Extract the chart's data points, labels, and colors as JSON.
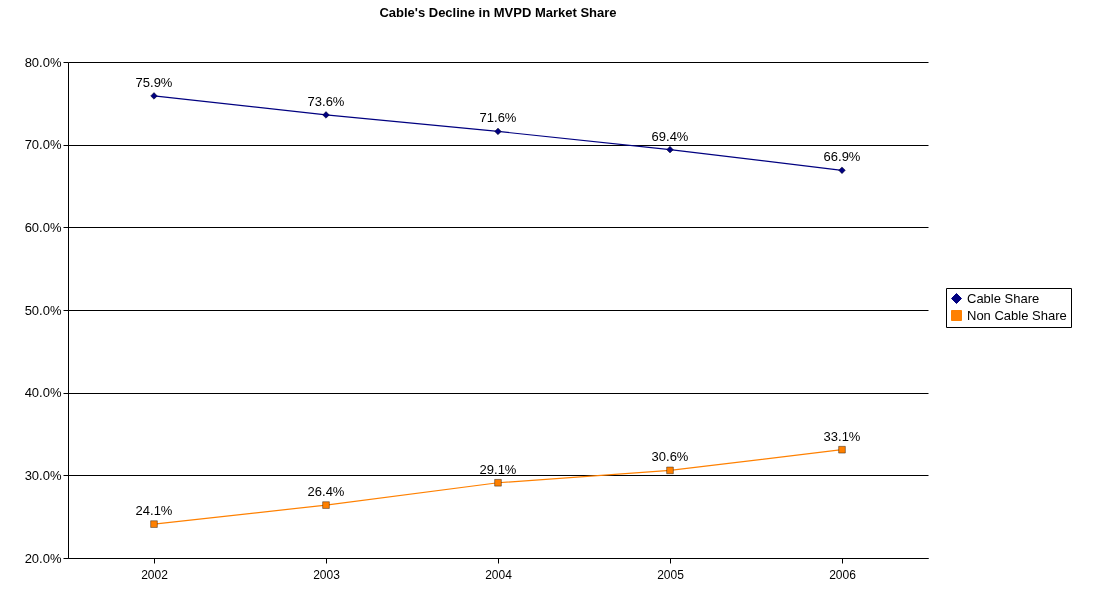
{
  "chart_data": {
    "type": "line",
    "title": "Cable's Decline in MVPD Market Share",
    "categories": [
      "2002",
      "2003",
      "2004",
      "2005",
      "2006"
    ],
    "series": [
      {
        "name": "Cable Share",
        "color": "#000080",
        "marker": "diamond",
        "values": [
          75.9,
          73.6,
          71.6,
          69.4,
          66.9
        ],
        "value_labels": [
          "75.9%",
          "73.6%",
          "71.6%",
          "69.4%",
          "66.9%"
        ]
      },
      {
        "name": "Non Cable Share",
        "color": "#ff8000",
        "marker": "square",
        "values": [
          24.1,
          26.4,
          29.1,
          30.6,
          33.1
        ],
        "value_labels": [
          "24.1%",
          "26.4%",
          "29.1%",
          "30.6%",
          "33.1%"
        ]
      }
    ],
    "ylim": [
      20,
      80
    ],
    "yticks": [
      {
        "value": 20,
        "label": "20.0%"
      },
      {
        "value": 30,
        "label": "30.0%"
      },
      {
        "value": 40,
        "label": "40.0%"
      },
      {
        "value": 50,
        "label": "50.0%"
      },
      {
        "value": 60,
        "label": "60.0%"
      },
      {
        "value": 70,
        "label": "70.0%"
      },
      {
        "value": 80,
        "label": "80.0%"
      }
    ],
    "grid": "y",
    "legend": "right"
  }
}
